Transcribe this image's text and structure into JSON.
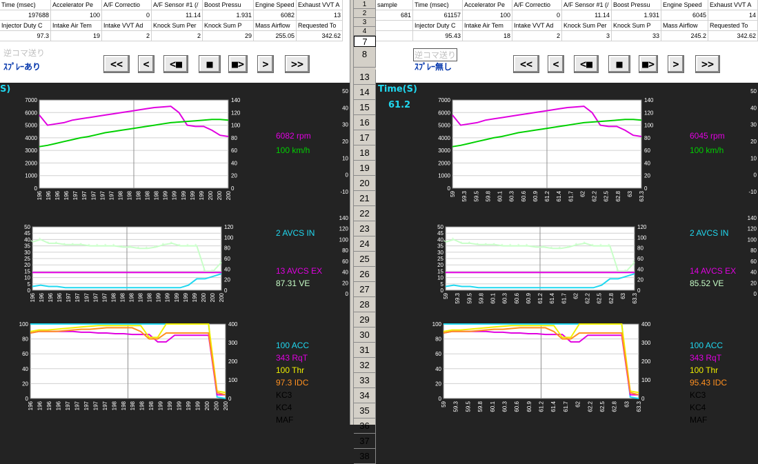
{
  "colors": {
    "rpm": "#e000e0",
    "speed": "#00d000",
    "avcsIn": "#20d8f0",
    "avcsEx": "#e000e0",
    "ve": "#c8ffc8",
    "acc": "#20d8f0",
    "rqt": "#e000e0",
    "thr": "#f0f000",
    "idc": "#ff9020",
    "kc": "#000000"
  },
  "left": {
    "header1": [
      "Time (msec)",
      "Accelerator Pe",
      "A/F Correctio",
      "A/F Sensor #1 (/",
      "Boost Pressu",
      "Engine Speed",
      "Exhaust VVT A"
    ],
    "values1": [
      "197688",
      "100",
      "0",
      "11.14",
      "1.931",
      "6082",
      "13"
    ],
    "header2": [
      "Injector Duty C",
      "Intake Air Tem",
      "Intake VVT Ad",
      "Knock Sum Per",
      "Knock Sum P",
      "Mass Airflow",
      "Requested To"
    ],
    "values2": [
      "97.3",
      "19",
      "2",
      "2",
      "29",
      "255.05",
      "342.62"
    ],
    "label_off": "逆コマ送り",
    "label_spray": "ｽﾌﾟﾚｰあり",
    "time_label": "S)",
    "readouts": {
      "rpm": "6082  rpm",
      "speed": "100  km/h",
      "avcs_in": "2  AVCS IN",
      "avcs_ex": "13  AVCS EX",
      "ve": "87.31  VE",
      "acc": "100  ACC",
      "rqt": "343  RqT",
      "thr": "100  Thr",
      "idc": "97.3  IDC",
      "kc3": "KC3",
      "kc4": "KC4",
      "maf": "MAF"
    },
    "xticks": [
      "196",
      "196",
      "196",
      "196",
      "197",
      "197",
      "197",
      "197",
      "197",
      "198",
      "198",
      "198",
      "198",
      "198",
      "199",
      "199",
      "199",
      "199",
      "199",
      "200",
      "200",
      "200"
    ]
  },
  "right": {
    "header1": [
      "sample",
      "Time (msec)",
      "Accelerator Pe",
      "A/F Correctio",
      "A/F Sensor #1 (/",
      "Boost Pressu",
      "Engine Speed",
      "Exhaust VVT A"
    ],
    "values1": [
      "681",
      "61157",
      "100",
      "0",
      "11.14",
      "1.931",
      "6045",
      "14"
    ],
    "header2": [
      "",
      "Injector Duty C",
      "Intake Air Tem",
      "Intake VVT Ad",
      "Knock Sum Per",
      "Knock Sum P",
      "Mass Airflow",
      "Requested To"
    ],
    "values2": [
      "",
      "95.43",
      "18",
      "2",
      "3",
      "33",
      "245.2",
      "342.62"
    ],
    "label_off": "逆コマ送り",
    "label_spray": "ｽﾌﾟﾚｰ無し",
    "time_title": "Time(S)",
    "time_value": "61.2",
    "readouts": {
      "rpm": "6045  rpm",
      "speed": "100  km/h",
      "avcs_in": "2  AVCS IN",
      "avcs_ex": "14  AVCS EX",
      "ve": "85.52  VE",
      "acc": "100  ACC",
      "rqt": "343  RqT",
      "thr": "100  Thr",
      "idc": "95.43  IDC",
      "kc3": "KC3",
      "kc4": "KC4",
      "maf": "MAF"
    },
    "xticks": [
      "59",
      "59.3",
      "59.5",
      "59.8",
      "60.1",
      "60.3",
      "60.6",
      "60.9",
      "61.2",
      "61.4",
      "61.7",
      "62",
      "62.2",
      "62.5",
      "62.8",
      "63",
      "63.3"
    ]
  },
  "buttons": [
    "<<",
    "<",
    "<■",
    "■",
    "■>",
    ">",
    ">>"
  ],
  "row_numbers": [
    "1",
    "2",
    "3",
    "4",
    "7",
    "8",
    "13",
    "14",
    "15",
    "16",
    "17",
    "18",
    "19",
    "20",
    "21",
    "22",
    "23",
    "24",
    "25",
    "26",
    "27",
    "28",
    "29",
    "30",
    "31",
    "32",
    "33",
    "34",
    "35",
    "36",
    "37",
    "38"
  ],
  "chart_data": [
    {
      "type": "line",
      "axis_left": {
        "ticks": [
          "0",
          "1000",
          "2000",
          "3000",
          "4000",
          "5000",
          "6000",
          "7000"
        ],
        "range": [
          0,
          7000
        ]
      },
      "axis_right": {
        "ticks": [
          "0",
          "20",
          "40",
          "60",
          "80",
          "100",
          "120",
          "140"
        ],
        "range": [
          0,
          140
        ]
      },
      "axis_far_right": {
        "ticks": [
          "-10",
          "0",
          "10",
          "20",
          "30",
          "40",
          "50"
        ]
      },
      "series": [
        {
          "values": [
            5800,
            5000,
            5100,
            5200,
            5400,
            5500,
            5600,
            5700,
            5800,
            5900,
            6000,
            6100,
            6200,
            6300,
            6400,
            6450,
            6500,
            6000,
            5000,
            4900,
            4900,
            4600,
            4200,
            4100
          ]
        },
        {
          "values": [
            66,
            68,
            71,
            74,
            77,
            80,
            82,
            85,
            88,
            90,
            92,
            94,
            96,
            98,
            100,
            102,
            104,
            105,
            106,
            107,
            108,
            109,
            109,
            108
          ]
        }
      ]
    },
    {
      "type": "line",
      "axis_left": {
        "ticks": [
          "0",
          "5",
          "10",
          "15",
          "20",
          "25",
          "30",
          "35",
          "40",
          "45",
          "50"
        ],
        "range": [
          0,
          50
        ]
      },
      "axis_right": {
        "ticks": [
          "0",
          "20",
          "40",
          "60",
          "80",
          "100",
          "120"
        ],
        "range": [
          0,
          120
        ]
      },
      "axis_far_right": {
        "ticks": [
          "0",
          "20",
          "40",
          "60",
          "80",
          "100",
          "120",
          "140"
        ]
      },
      "series": [
        {
          "values": [
            38,
            40,
            37,
            37,
            36,
            36,
            36,
            35,
            35,
            35,
            35,
            34,
            34,
            33,
            33,
            34,
            36,
            37,
            35,
            35,
            35,
            15,
            15,
            22
          ]
        },
        {
          "values": [
            14,
            14,
            14,
            14,
            14,
            14,
            14,
            14,
            14,
            14,
            14,
            14,
            14,
            14,
            14,
            14,
            14,
            14,
            14,
            14,
            14,
            14,
            14,
            14
          ]
        },
        {
          "values": [
            3,
            4,
            3,
            3,
            2,
            2,
            2,
            2,
            2,
            2,
            2,
            2,
            2,
            2,
            2,
            2,
            2,
            2,
            2,
            4,
            9,
            9,
            11,
            13
          ]
        }
      ]
    },
    {
      "type": "line",
      "axis_left": {
        "ticks": [
          "0",
          "20",
          "40",
          "60",
          "80",
          "100"
        ],
        "range": [
          0,
          100
        ]
      },
      "axis_right": {
        "ticks": [
          "0",
          "100",
          "200",
          "300",
          "400"
        ],
        "range": [
          0,
          400
        ]
      },
      "series": [
        {
          "values": [
            100,
            100,
            100,
            100,
            100,
            100,
            100,
            100,
            100,
            100,
            100,
            100,
            100,
            100,
            100,
            100,
            100,
            100,
            100,
            100,
            100,
            100,
            2,
            0
          ]
        },
        {
          "values": [
            88,
            90,
            90,
            90,
            90,
            90,
            89,
            89,
            88,
            88,
            87,
            87,
            86,
            86,
            86,
            76,
            76,
            85,
            85,
            85,
            85,
            85,
            5,
            5
          ]
        },
        {
          "values": [
            90,
            92,
            92,
            93,
            94,
            95,
            96,
            97,
            98,
            98,
            98,
            98,
            98,
            98,
            82,
            82,
            100,
            100,
            100,
            100,
            100,
            100,
            10,
            8
          ]
        },
        {
          "values": [
            88,
            90,
            90,
            90,
            91,
            92,
            93,
            93,
            94,
            95,
            95,
            95,
            95,
            90,
            80,
            80,
            88,
            88,
            88,
            88,
            88,
            88,
            8,
            5
          ]
        }
      ]
    }
  ]
}
